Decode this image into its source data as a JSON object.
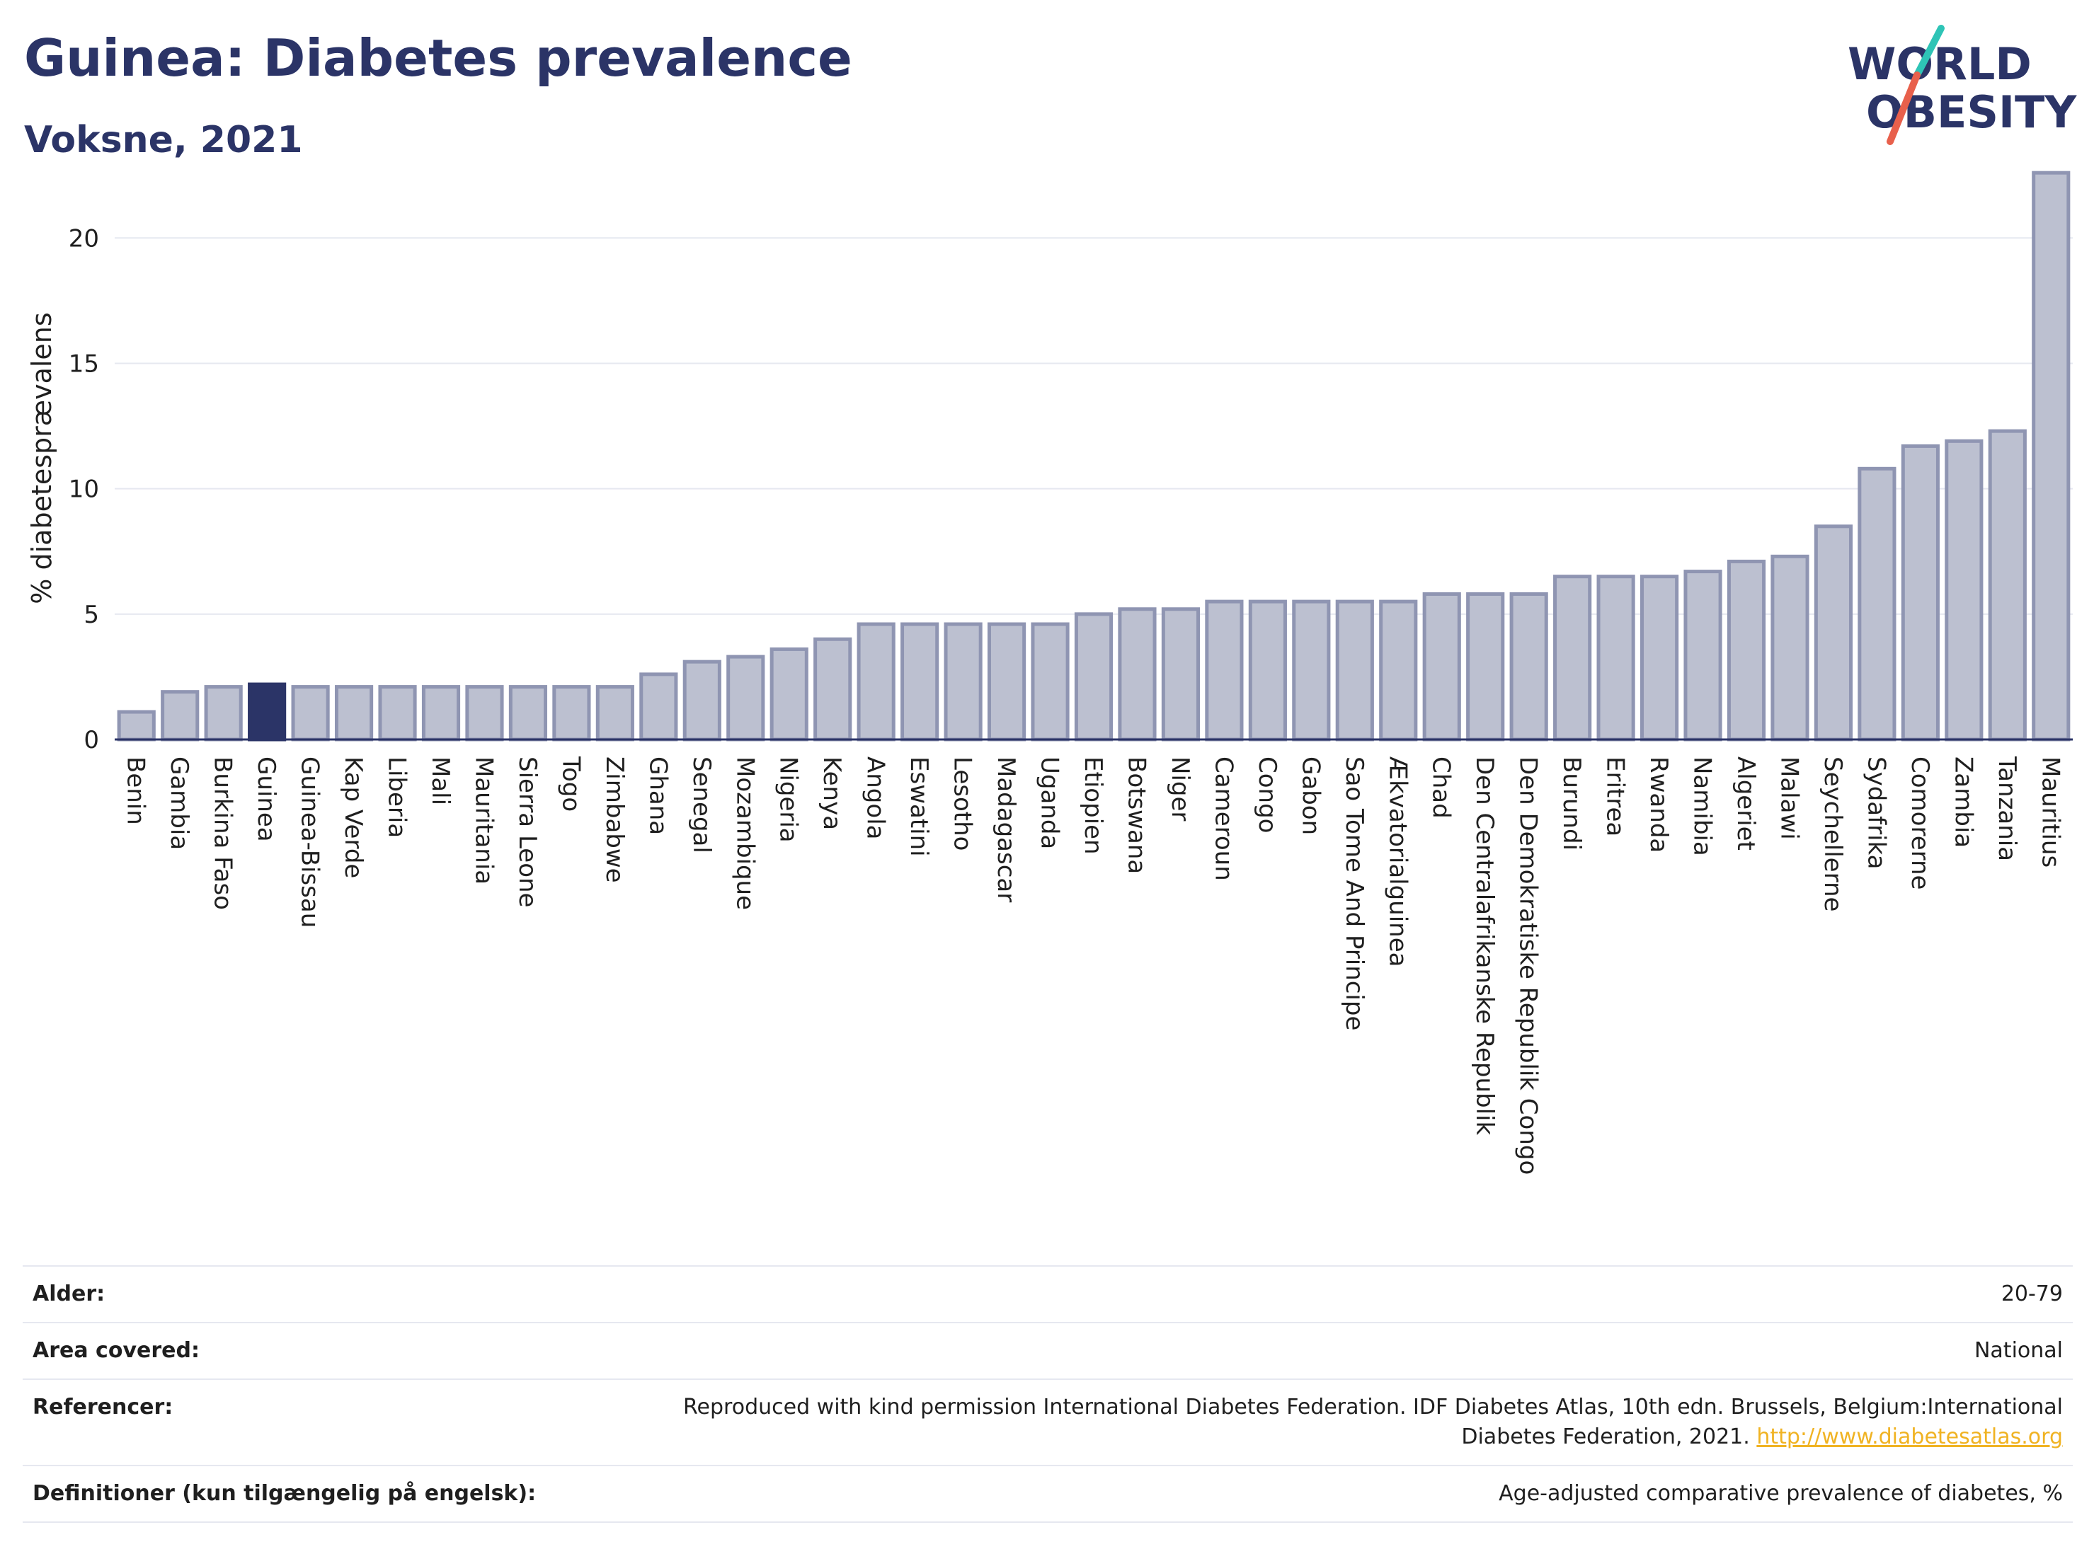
{
  "header": {
    "title": "Guinea: Diabetes prevalence",
    "subtitle": "Voksne, 2021"
  },
  "logo": {
    "line1": "WORLD",
    "line2": "OBESITY",
    "colors": {
      "text": "#2b3467",
      "slash_teal": "#2ec4b6",
      "slash_red": "#e8604c"
    }
  },
  "colors": {
    "bar_fill": "#bcc0d0",
    "bar_stroke": "#8f95b2",
    "highlight": "#2b3467",
    "grid": "#e6e8f0",
    "axis": "#2b3467"
  },
  "chart_data": {
    "type": "bar",
    "ylabel": "% diabetesprævalens",
    "xlabel": "",
    "ylim": [
      0,
      23
    ],
    "yticks": [
      0,
      5,
      10,
      15,
      20
    ],
    "grid": true,
    "highlight": "Guinea",
    "categories": [
      "Benin",
      "Gambia",
      "Burkina Faso",
      "Guinea",
      "Guinea-Bissau",
      "Kap Verde",
      "Liberia",
      "Mali",
      "Mauritania",
      "Sierra Leone",
      "Togo",
      "Zimbabwe",
      "Ghana",
      "Senegal",
      "Mozambique",
      "Nigeria",
      "Kenya",
      "Angola",
      "Eswatini",
      "Lesotho",
      "Madagascar",
      "Uganda",
      "Etiopien",
      "Botswana",
      "Niger",
      "Cameroun",
      "Congo",
      "Gabon",
      "Sao Tome And Principe",
      "Ækvatorialguinea",
      "Chad",
      "Den Centralafrikanske Republik",
      "Den Demokratiske Republik Congo",
      "Burundi",
      "Eritrea",
      "Rwanda",
      "Namibia",
      "Algeriet",
      "Malawi",
      "Seychellerne",
      "Sydafrika",
      "Comorerne",
      "Zambia",
      "Tanzania",
      "Mauritius"
    ],
    "values": [
      1.1,
      1.9,
      2.1,
      2.2,
      2.1,
      2.1,
      2.1,
      2.1,
      2.1,
      2.1,
      2.1,
      2.1,
      2.6,
      3.1,
      3.3,
      3.6,
      4.0,
      4.6,
      4.6,
      4.6,
      4.6,
      4.6,
      5.0,
      5.2,
      5.2,
      5.5,
      5.5,
      5.5,
      5.5,
      5.5,
      5.8,
      5.8,
      5.8,
      6.5,
      6.5,
      6.5,
      6.7,
      7.1,
      7.3,
      8.5,
      10.8,
      11.7,
      11.9,
      12.3,
      22.6
    ]
  },
  "meta": {
    "rows": [
      {
        "key": "Alder:",
        "value": "20-79"
      },
      {
        "key": "Area covered:",
        "value": "National"
      },
      {
        "key": "Referencer:",
        "value": "Reproduced with kind permission International Diabetes Federation.  IDF Diabetes Atlas, 10th edn. Brussels, Belgium:International",
        "value2": "Diabetes Federation, 2021.",
        "link": "http://www.diabetesatlas.org"
      },
      {
        "key": "Definitioner (kun tilgængelig på engelsk):",
        "value": "Age-adjusted comparative prevalence of diabetes, %"
      }
    ]
  }
}
